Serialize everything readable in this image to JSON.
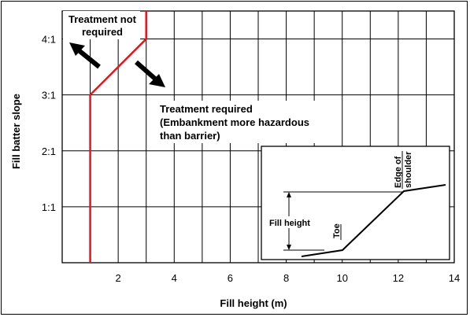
{
  "chart_data": {
    "type": "line",
    "xlabel": "Fill height (m)",
    "ylabel": "Fill batter slope",
    "xlim": [
      0,
      14
    ],
    "ylim": [
      0,
      4.5
    ],
    "x_ticks": [
      2,
      4,
      6,
      8,
      10,
      12,
      14
    ],
    "x_tick_labels": [
      "2",
      "4",
      "6",
      "8",
      "10",
      "12",
      "14"
    ],
    "y_ticks": [
      1,
      2,
      3,
      4
    ],
    "y_tick_labels": [
      "1:1",
      "2:1",
      "3:1",
      "4:1"
    ],
    "x_grid": [
      1,
      2,
      3,
      4,
      5,
      6,
      7,
      8,
      9,
      10,
      11,
      12,
      13,
      14
    ],
    "grid": true,
    "series": [
      {
        "color": "#e8141b",
        "x": [
          1,
          1,
          3,
          3
        ],
        "y": [
          0,
          3,
          4,
          4.5
        ]
      }
    ],
    "annotations": {
      "not_required": [
        "Treatment not",
        "required"
      ],
      "required": [
        "Treatment required",
        "(Embankment more hazardous",
        "than barrier)"
      ]
    },
    "inset": {
      "fill_height_label": "Fill height",
      "toe_label": "Toe",
      "shoulder_label": [
        "Edge of",
        "shoulder"
      ]
    }
  }
}
